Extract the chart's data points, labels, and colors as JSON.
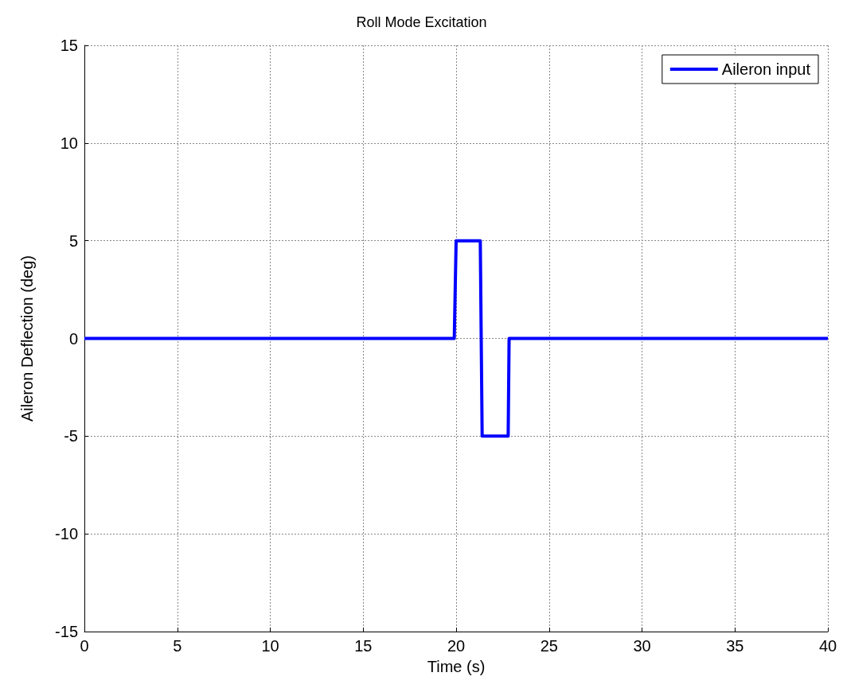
{
  "chart_data": {
    "type": "line",
    "title": "Roll Mode Excitation",
    "xlabel": "Time (s)",
    "ylabel": "Aileron Deflection (deg)",
    "x": [
      0,
      19.9,
      20,
      21.3,
      21.4,
      22.8,
      22.85,
      40
    ],
    "series": [
      {
        "name": "Aileron input",
        "color": "#0000ff",
        "values": [
          0,
          0,
          5,
          5,
          -5,
          -5,
          0,
          0
        ]
      }
    ],
    "xlim": [
      0,
      40
    ],
    "xticks": [
      0,
      5,
      10,
      15,
      20,
      25,
      30,
      35,
      40
    ],
    "ylim": [
      -15,
      15
    ],
    "yticks": [
      -15,
      -10,
      -5,
      0,
      5,
      10,
      15
    ],
    "grid": true,
    "legend": "top right",
    "marker": "none",
    "line_style": "solid"
  }
}
